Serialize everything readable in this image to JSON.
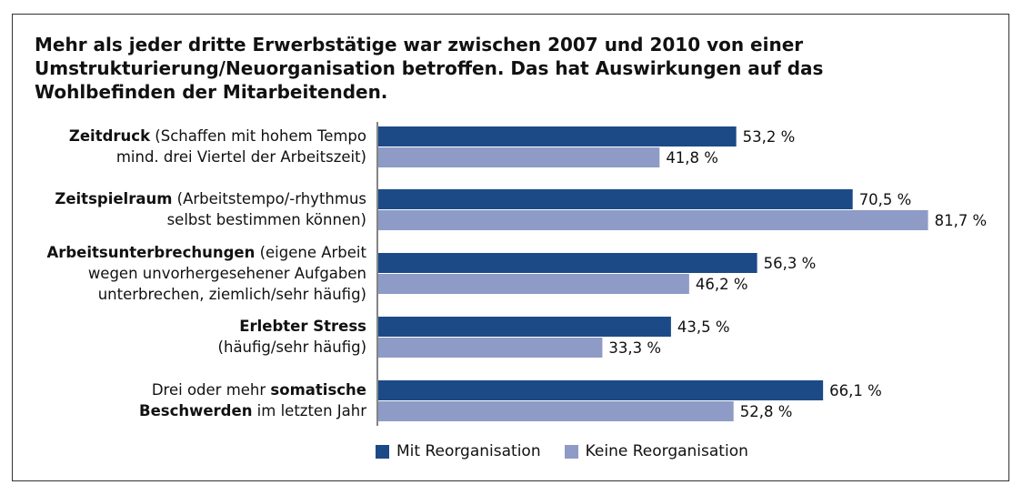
{
  "title": "Mehr als jeder dritte Erwerbstätige war zwischen 2007 und 2010 von einer Umstrukturierung/Neuorganisation betroffen. Das hat Auswirkungen auf das Wohlbefinden der Mitarbeitenden.",
  "chart_data": {
    "type": "bar",
    "orientation": "horizontal",
    "title": "Mehr als jeder dritte Erwerbstätige war zwischen 2007 und 2010 von einer Umstrukturierung/Neuorganisation betroffen. Das hat Auswirkungen auf das Wohlbefinden der Mitarbeitenden.",
    "categories": [
      [
        [
          {
            "t": "Zeitdruck",
            "b": true
          },
          {
            "t": " (Schaffen mit hohem Tempo",
            "b": false
          }
        ],
        [
          {
            "t": "mind. drei Viertel der Arbeitszeit)",
            "b": false
          }
        ]
      ],
      [
        [
          {
            "t": "Zeitspielraum",
            "b": true
          },
          {
            "t": " (Arbeitstempo/-rhythmus",
            "b": false
          }
        ],
        [
          {
            "t": "selbst bestimmen können)",
            "b": false
          }
        ]
      ],
      [
        [
          {
            "t": "Arbeitsunterbrechungen",
            "b": true
          },
          {
            "t": " (eigene Arbeit",
            "b": false
          }
        ],
        [
          {
            "t": "wegen unvorhergesehener Aufgaben",
            "b": false
          }
        ],
        [
          {
            "t": "unterbrechen, ziemlich/sehr häufig)",
            "b": false
          }
        ]
      ],
      [
        [
          {
            "t": "Erlebter Stress",
            "b": true
          }
        ],
        [
          {
            "t": "(häufig/sehr häufig)",
            "b": false
          }
        ]
      ],
      [
        [
          {
            "t": "Drei oder mehr ",
            "b": false
          },
          {
            "t": "somatische",
            "b": true
          }
        ],
        [
          {
            "t": "Beschwerden",
            "b": true
          },
          {
            "t": " im letzten Jahr",
            "b": false
          }
        ]
      ]
    ],
    "series": [
      {
        "name": "Mit Reorganisation",
        "color": "#1c4a87",
        "values": [
          53.2,
          70.5,
          56.3,
          43.5,
          66.1
        ],
        "labels": [
          "53,2 %",
          "70,5 %",
          "56,3 %",
          "43,5 %",
          "66,1 %"
        ]
      },
      {
        "name": "Keine Reorganisation",
        "color": "#8e9bc6",
        "values": [
          41.8,
          81.7,
          46.2,
          33.3,
          52.8
        ],
        "labels": [
          "41,8 %",
          "81,7 %",
          "46,2 %",
          "33,3 %",
          "52,8 %"
        ]
      }
    ],
    "unit": "%",
    "grid": false,
    "legend": "bottom"
  }
}
